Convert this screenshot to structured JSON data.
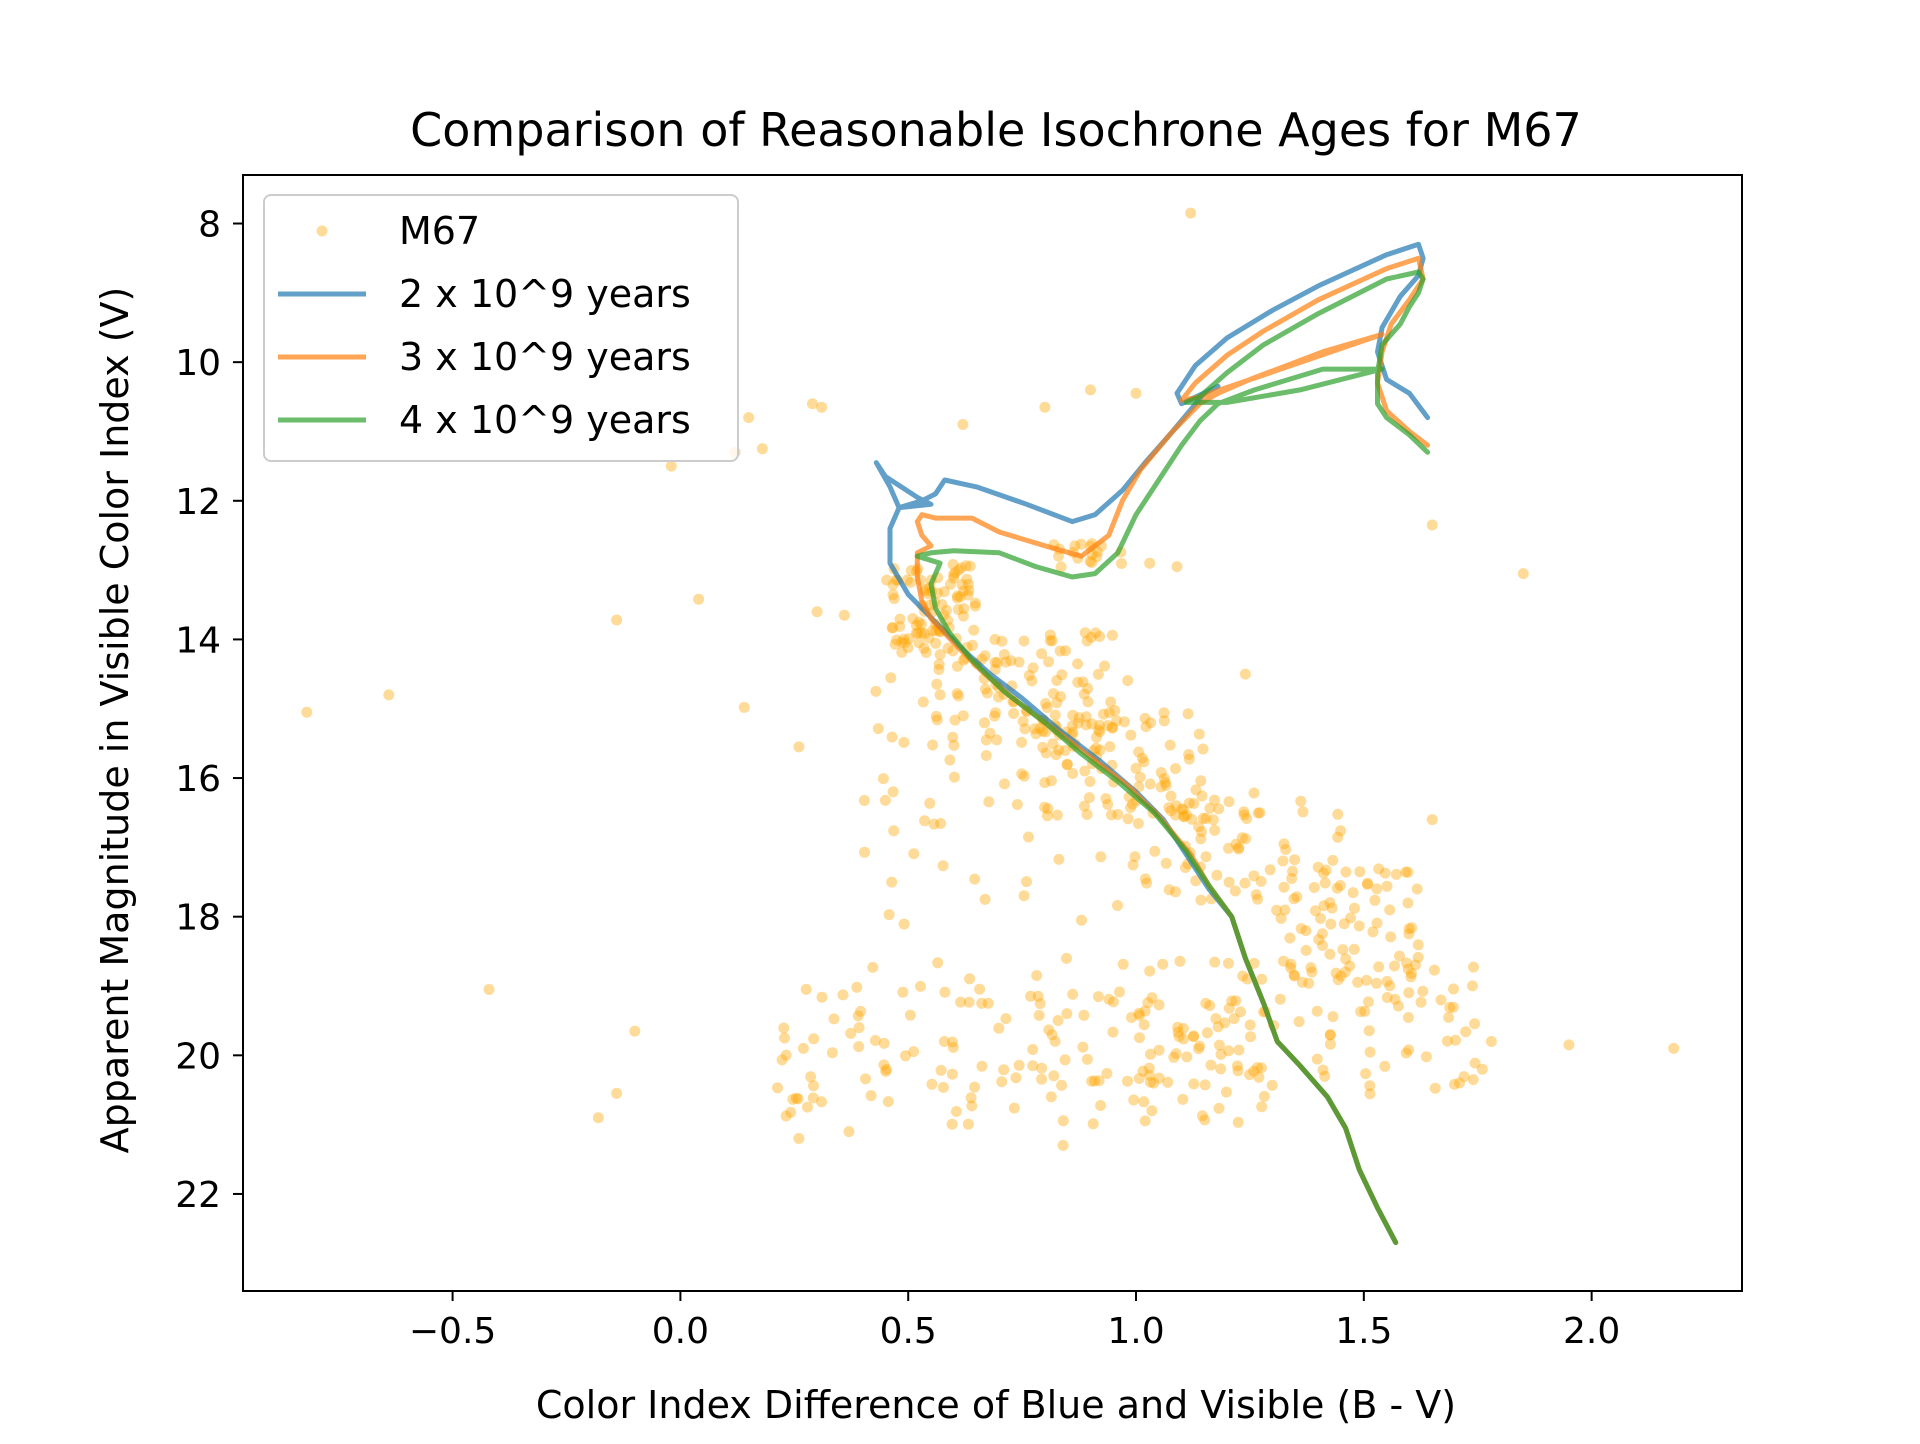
{
  "chart_data": {
    "type": "scatter",
    "title": "Comparison of Reasonable Isochrone Ages for M67",
    "xlabel": "Color Index Difference of Blue and Visible (B - V)",
    "ylabel": "Apparent Magnitude in Visible Color Index (V)",
    "xlim": [
      -0.96,
      2.33
    ],
    "ylim": [
      23.4,
      7.3
    ],
    "y_inverted": true,
    "grid": false,
    "legend_position": "upper-left",
    "x_ticks": [
      -0.5,
      0.0,
      0.5,
      1.0,
      1.5,
      2.0
    ],
    "x_tick_labels": [
      "−0.5",
      "0.0",
      "0.5",
      "1.0",
      "1.5",
      "2.0"
    ],
    "y_ticks": [
      8,
      10,
      12,
      14,
      16,
      18,
      20,
      22
    ],
    "y_tick_labels": [
      "8",
      "10",
      "12",
      "14",
      "16",
      "18",
      "20",
      "22"
    ],
    "scatter_series": {
      "name": "M67",
      "color": "#ffa500",
      "alpha": 0.4,
      "outliers": [
        [
          1.12,
          7.85
        ],
        [
          -0.82,
          15.05
        ],
        [
          -0.64,
          14.8
        ],
        [
          -0.42,
          19.05
        ],
        [
          -0.18,
          20.9
        ],
        [
          -0.14,
          20.55
        ],
        [
          -0.1,
          19.65
        ],
        [
          -0.14,
          13.72
        ],
        [
          0.04,
          13.42
        ],
        [
          -0.02,
          11.5
        ],
        [
          0.12,
          11.3
        ],
        [
          0.14,
          14.98
        ],
        [
          0.18,
          11.25
        ],
        [
          0.15,
          10.8
        ],
        [
          0.26,
          15.55
        ],
        [
          0.29,
          10.6
        ],
        [
          0.31,
          10.65
        ],
        [
          0.3,
          13.6
        ],
        [
          0.36,
          13.65
        ],
        [
          0.62,
          10.9
        ],
        [
          0.8,
          10.65
        ],
        [
          0.9,
          10.4
        ],
        [
          1.0,
          10.45
        ],
        [
          1.03,
          12.9
        ],
        [
          1.09,
          12.95
        ],
        [
          1.24,
          14.5
        ],
        [
          1.65,
          12.35
        ],
        [
          1.85,
          13.05
        ],
        [
          1.65,
          16.6
        ],
        [
          1.95,
          19.85
        ],
        [
          2.18,
          19.9
        ],
        [
          1.78,
          19.8
        ],
        [
          1.76,
          20.2
        ],
        [
          1.74,
          20.35
        ],
        [
          1.71,
          20.4
        ],
        [
          0.37,
          21.1
        ],
        [
          0.26,
          21.2
        ],
        [
          0.84,
          21.3
        ]
      ],
      "clusters": [
        {
          "x_range": [
            0.45,
            0.65
          ],
          "y_range": [
            12.9,
            14.2
          ],
          "count": 90
        },
        {
          "x_range": [
            0.55,
            0.95
          ],
          "y_range": [
            13.9,
            15.6
          ],
          "count": 95
        },
        {
          "x_range": [
            0.75,
            1.15
          ],
          "y_range": [
            15.0,
            16.6
          ],
          "count": 80
        },
        {
          "x_range": [
            1.0,
            1.45
          ],
          "y_range": [
            16.2,
            17.8
          ],
          "count": 75
        },
        {
          "x_range": [
            1.3,
            1.62
          ],
          "y_range": [
            17.3,
            19.0
          ],
          "count": 70
        },
        {
          "x_range": [
            0.8,
            0.98
          ],
          "y_range": [
            12.6,
            13.0
          ],
          "count": 18
        },
        {
          "x_range": [
            0.4,
            1.0
          ],
          "y_range": [
            14.3,
            19.5
          ],
          "count": 70
        },
        {
          "x_range": [
            0.2,
            1.3
          ],
          "y_range": [
            19.0,
            21.0
          ],
          "count": 140
        },
        {
          "x_range": [
            1.0,
            1.75
          ],
          "y_range": [
            18.6,
            20.6
          ],
          "count": 95
        }
      ]
    },
    "series": [
      {
        "name": "2 x 10^9 years",
        "color": "#1f77b4",
        "points": [
          [
            1.64,
            10.8
          ],
          [
            1.6,
            10.45
          ],
          [
            1.55,
            10.25
          ],
          [
            1.53,
            9.85
          ],
          [
            1.54,
            9.5
          ],
          [
            1.58,
            9.05
          ],
          [
            1.62,
            8.75
          ],
          [
            1.63,
            8.5
          ],
          [
            1.62,
            8.3
          ],
          [
            1.55,
            8.45
          ],
          [
            1.4,
            8.9
          ],
          [
            1.3,
            9.25
          ],
          [
            1.2,
            9.65
          ],
          [
            1.13,
            10.05
          ],
          [
            1.09,
            10.45
          ],
          [
            1.1,
            10.6
          ],
          [
            1.18,
            10.35
          ],
          [
            1.15,
            10.45
          ],
          [
            1.08,
            11.0
          ],
          [
            1.02,
            11.45
          ],
          [
            0.97,
            11.85
          ],
          [
            0.91,
            12.2
          ],
          [
            0.86,
            12.3
          ],
          [
            0.76,
            12.05
          ],
          [
            0.65,
            11.8
          ],
          [
            0.58,
            11.7
          ],
          [
            0.56,
            11.9
          ],
          [
            0.53,
            12.0
          ],
          [
            0.48,
            12.1
          ],
          [
            0.46,
            11.8
          ],
          [
            0.43,
            11.45
          ],
          [
            0.45,
            11.65
          ],
          [
            0.52,
            11.95
          ],
          [
            0.55,
            12.05
          ],
          [
            0.48,
            12.1
          ],
          [
            0.46,
            12.4
          ],
          [
            0.46,
            12.9
          ],
          [
            0.5,
            13.35
          ],
          [
            0.56,
            13.75
          ],
          [
            0.62,
            14.15
          ],
          [
            0.68,
            14.5
          ],
          [
            0.75,
            14.85
          ],
          [
            0.83,
            15.3
          ],
          [
            0.92,
            15.75
          ],
          [
            1.0,
            16.2
          ],
          [
            1.06,
            16.6
          ],
          [
            1.12,
            17.2
          ],
          [
            1.16,
            17.6
          ],
          [
            1.21,
            18.0
          ],
          [
            1.24,
            18.6
          ],
          [
            1.28,
            19.25
          ],
          [
            1.31,
            19.8
          ],
          [
            1.36,
            20.15
          ],
          [
            1.42,
            20.6
          ],
          [
            1.46,
            21.05
          ],
          [
            1.49,
            21.65
          ],
          [
            1.53,
            22.2
          ],
          [
            1.57,
            22.7
          ]
        ]
      },
      {
        "name": "3 x 10^9 years",
        "color": "#ff7f0e",
        "points": [
          [
            1.64,
            11.2
          ],
          [
            1.6,
            11.0
          ],
          [
            1.55,
            10.7
          ],
          [
            1.53,
            10.3
          ],
          [
            1.54,
            9.85
          ],
          [
            1.56,
            9.45
          ],
          [
            1.6,
            9.1
          ],
          [
            1.63,
            8.8
          ],
          [
            1.62,
            8.5
          ],
          [
            1.55,
            8.65
          ],
          [
            1.4,
            9.1
          ],
          [
            1.28,
            9.55
          ],
          [
            1.2,
            9.9
          ],
          [
            1.13,
            10.3
          ],
          [
            1.1,
            10.55
          ],
          [
            1.14,
            10.5
          ],
          [
            1.54,
            9.6
          ],
          [
            1.41,
            9.85
          ],
          [
            1.25,
            10.25
          ],
          [
            1.18,
            10.45
          ],
          [
            1.14,
            10.6
          ],
          [
            1.08,
            11.0
          ],
          [
            1.01,
            11.55
          ],
          [
            0.97,
            12.0
          ],
          [
            0.94,
            12.5
          ],
          [
            0.88,
            12.8
          ],
          [
            0.8,
            12.65
          ],
          [
            0.7,
            12.45
          ],
          [
            0.64,
            12.25
          ],
          [
            0.6,
            12.25
          ],
          [
            0.56,
            12.25
          ],
          [
            0.53,
            12.2
          ],
          [
            0.52,
            12.3
          ],
          [
            0.53,
            12.5
          ],
          [
            0.55,
            12.65
          ],
          [
            0.52,
            12.75
          ],
          [
            0.52,
            13.1
          ],
          [
            0.53,
            13.45
          ],
          [
            0.55,
            13.7
          ],
          [
            0.6,
            14.05
          ],
          [
            0.66,
            14.45
          ],
          [
            0.73,
            14.85
          ],
          [
            0.81,
            15.25
          ],
          [
            0.9,
            15.7
          ],
          [
            0.98,
            16.1
          ],
          [
            1.05,
            16.55
          ],
          [
            1.12,
            17.1
          ],
          [
            1.16,
            17.55
          ],
          [
            1.21,
            18.0
          ],
          [
            1.24,
            18.6
          ],
          [
            1.28,
            19.25
          ],
          [
            1.31,
            19.8
          ],
          [
            1.36,
            20.15
          ],
          [
            1.42,
            20.6
          ],
          [
            1.46,
            21.05
          ],
          [
            1.49,
            21.65
          ],
          [
            1.53,
            22.2
          ],
          [
            1.57,
            22.7
          ]
        ]
      },
      {
        "name": "4 x 10^9 years",
        "color": "#2ca02c",
        "points": [
          [
            1.64,
            11.3
          ],
          [
            1.6,
            11.05
          ],
          [
            1.55,
            10.8
          ],
          [
            1.53,
            10.6
          ],
          [
            1.53,
            10.15
          ],
          [
            1.54,
            9.75
          ],
          [
            1.58,
            9.45
          ],
          [
            1.6,
            9.2
          ],
          [
            1.62,
            9.0
          ],
          [
            1.63,
            8.8
          ],
          [
            1.62,
            8.7
          ],
          [
            1.55,
            8.8
          ],
          [
            1.4,
            9.3
          ],
          [
            1.28,
            9.75
          ],
          [
            1.2,
            10.15
          ],
          [
            1.14,
            10.5
          ],
          [
            1.11,
            10.58
          ],
          [
            1.2,
            10.58
          ],
          [
            1.36,
            10.4
          ],
          [
            1.54,
            10.1
          ],
          [
            1.41,
            10.1
          ],
          [
            1.26,
            10.4
          ],
          [
            1.18,
            10.6
          ],
          [
            1.14,
            10.85
          ],
          [
            1.1,
            11.2
          ],
          [
            1.05,
            11.7
          ],
          [
            1.0,
            12.2
          ],
          [
            0.96,
            12.75
          ],
          [
            0.91,
            13.05
          ],
          [
            0.86,
            13.1
          ],
          [
            0.78,
            12.95
          ],
          [
            0.7,
            12.75
          ],
          [
            0.6,
            12.72
          ],
          [
            0.55,
            12.75
          ],
          [
            0.52,
            12.8
          ],
          [
            0.57,
            12.9
          ],
          [
            0.55,
            13.2
          ],
          [
            0.56,
            13.55
          ],
          [
            0.59,
            13.9
          ],
          [
            0.64,
            14.3
          ],
          [
            0.71,
            14.75
          ],
          [
            0.8,
            15.2
          ],
          [
            0.88,
            15.65
          ],
          [
            0.96,
            16.05
          ],
          [
            1.04,
            16.5
          ],
          [
            1.11,
            17.05
          ],
          [
            1.16,
            17.55
          ],
          [
            1.21,
            18.0
          ],
          [
            1.24,
            18.6
          ],
          [
            1.28,
            19.25
          ],
          [
            1.31,
            19.8
          ],
          [
            1.36,
            20.15
          ],
          [
            1.42,
            20.6
          ],
          [
            1.46,
            21.05
          ],
          [
            1.49,
            21.65
          ],
          [
            1.53,
            22.2
          ],
          [
            1.57,
            22.7
          ]
        ]
      }
    ],
    "legend": [
      {
        "label": "M67",
        "kind": "marker",
        "color": "#ffa500"
      },
      {
        "label": "2 x 10^9 years",
        "kind": "line",
        "color": "#1f77b4"
      },
      {
        "label": "3 x 10^9 years",
        "kind": "line",
        "color": "#ff7f0e"
      },
      {
        "label": "4 x 10^9 years",
        "kind": "line",
        "color": "#2ca02c"
      }
    ]
  }
}
